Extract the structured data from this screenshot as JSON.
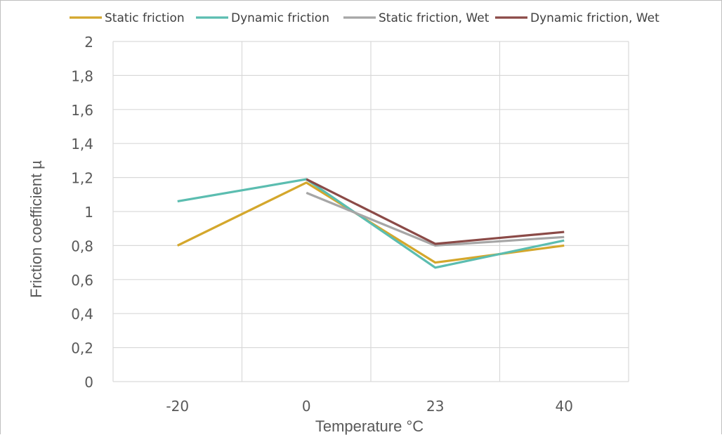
{
  "chart_data": {
    "type": "line",
    "title": "",
    "xlabel": "Temperature °C",
    "ylabel": "Friction coefficient µ",
    "categories": [
      "-20",
      "0",
      "23",
      "40"
    ],
    "ylim": [
      0,
      2
    ],
    "yticks": [
      "0",
      "0,2",
      "0,4",
      "0,6",
      "0,8",
      "1",
      "1,2",
      "1,4",
      "1,6",
      "1,8",
      "2"
    ],
    "ytick_values": [
      0,
      0.2,
      0.4,
      0.6,
      0.8,
      1.0,
      1.2,
      1.4,
      1.6,
      1.8,
      2.0
    ],
    "grid": true,
    "legend_position": "top",
    "series": [
      {
        "name": "Static friction",
        "color": "#d4a72c",
        "values": [
          0.8,
          1.17,
          0.7,
          0.8
        ]
      },
      {
        "name": "Dynamic friction",
        "color": "#5bbdb0",
        "values": [
          1.06,
          1.19,
          0.67,
          0.83
        ]
      },
      {
        "name": "Static friction, Wet",
        "color": "#a6a6a6",
        "values": [
          null,
          1.11,
          0.8,
          0.85
        ]
      },
      {
        "name": "Dynamic friction, Wet",
        "color": "#8b4a47",
        "values": [
          null,
          1.19,
          0.81,
          0.88
        ]
      }
    ]
  }
}
